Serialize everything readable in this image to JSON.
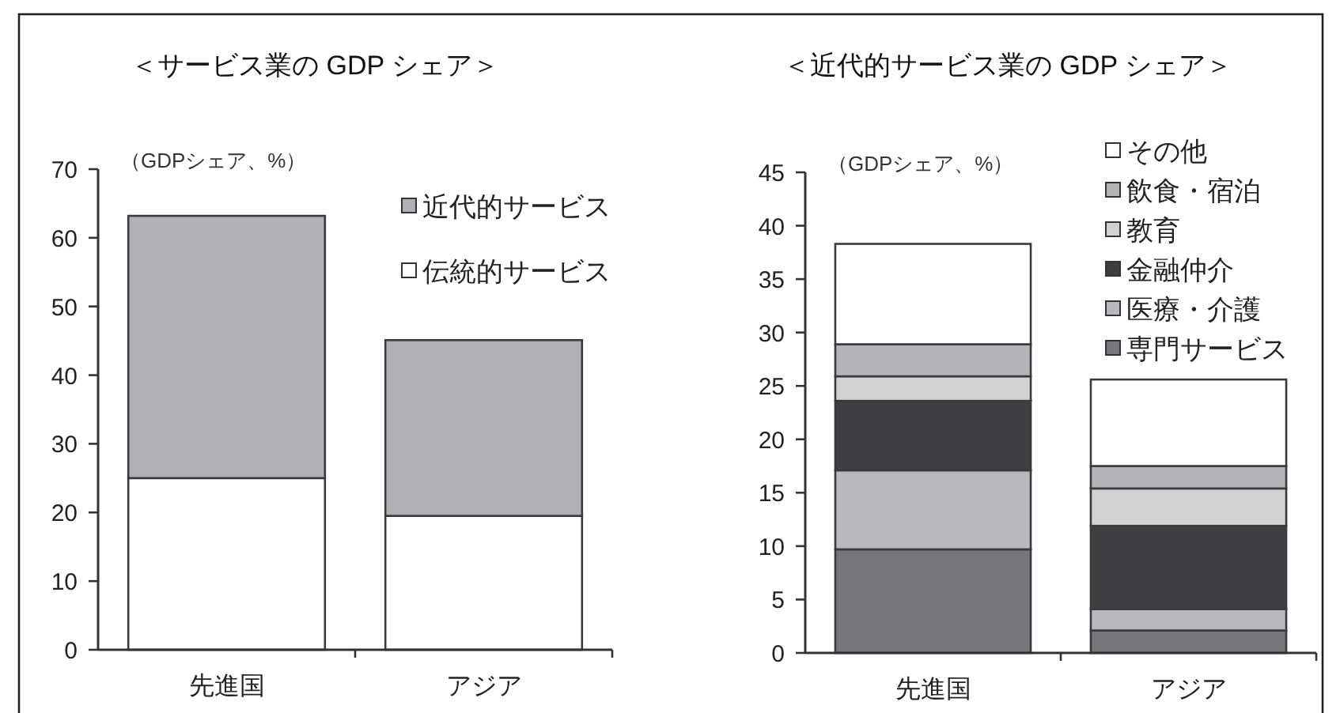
{
  "chart_data": [
    {
      "type": "bar",
      "title": "＜サービス業の GDP シェア＞",
      "ylabel": "（GDPシェア、%）",
      "categories": [
        "先進国",
        "アジア"
      ],
      "stacked": true,
      "series": [
        {
          "name": "伝統的サービス",
          "color": "#ffffff",
          "values": [
            25,
            19.5
          ]
        },
        {
          "name": "近代的サービス",
          "color": "#b1b1b5",
          "values": [
            38.2,
            25.6
          ]
        }
      ],
      "ylim": [
        0,
        70
      ],
      "yticks": [
        0,
        10,
        20,
        30,
        40,
        50,
        60,
        70
      ],
      "legend": "top right"
    },
    {
      "type": "bar",
      "title": "＜近代的サービス業の GDP シェア＞",
      "ylabel": "（GDPシェア、%）",
      "categories": [
        "先進国",
        "アジア"
      ],
      "stacked": true,
      "series": [
        {
          "name": "専門サービス",
          "color": "#77777b",
          "values": [
            9.7,
            2.1
          ]
        },
        {
          "name": "医療・介護",
          "color": "#b9b9bd",
          "values": [
            7.4,
            2.0
          ]
        },
        {
          "name": "金融仲介",
          "color": "#3f3f42",
          "values": [
            6.5,
            7.8
          ]
        },
        {
          "name": "教育",
          "color": "#d2d2d2",
          "values": [
            2.3,
            3.5
          ]
        },
        {
          "name": "飲食・宿泊",
          "color": "#b4b4b8",
          "values": [
            3.0,
            2.1
          ]
        },
        {
          "name": "その他",
          "color": "#ffffff",
          "values": [
            9.4,
            8.1
          ]
        }
      ],
      "ylim": [
        0,
        45
      ],
      "yticks": [
        0,
        5,
        10,
        15,
        20,
        25,
        30,
        35,
        40,
        45
      ],
      "legend": "top right"
    }
  ]
}
